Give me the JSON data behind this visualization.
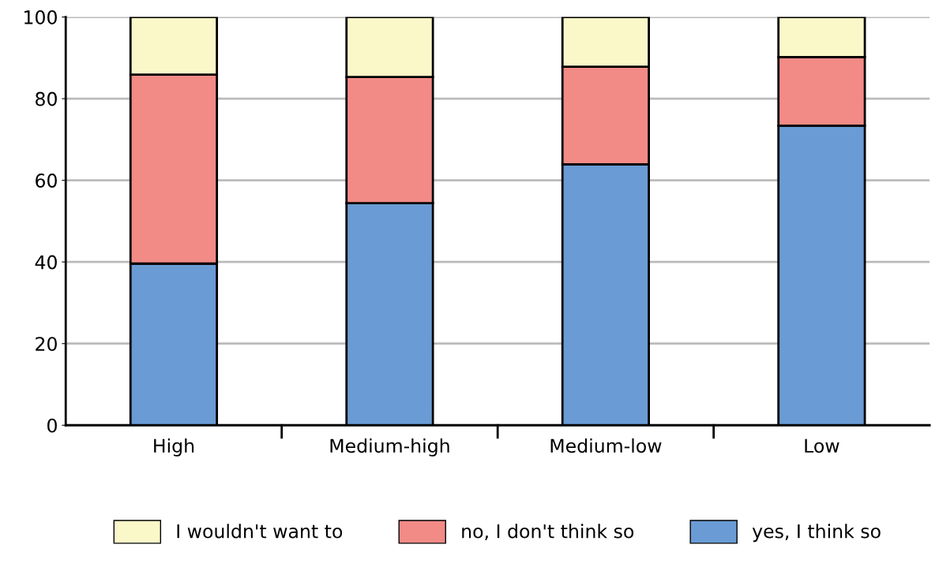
{
  "chart_data": {
    "type": "bar",
    "stacked": true,
    "categories": [
      "High",
      "Medium-high",
      "Medium-low",
      "Low"
    ],
    "series": [
      {
        "name": "yes, I think so",
        "color": "#6a9bd4",
        "values": [
          39.6,
          54.4,
          63.9,
          73.4
        ]
      },
      {
        "name": "no, I don't think so",
        "color": "#f28a86",
        "values": [
          46.3,
          30.9,
          23.9,
          16.8
        ]
      },
      {
        "name": "I wouldn't want to",
        "color": "#faf8c8",
        "values": [
          14.1,
          14.7,
          12.2,
          9.8
        ]
      }
    ],
    "ylim": [
      0,
      100
    ],
    "yticks": [
      0,
      20,
      40,
      60,
      80,
      100
    ],
    "grid": "y",
    "legend": "bottom"
  }
}
